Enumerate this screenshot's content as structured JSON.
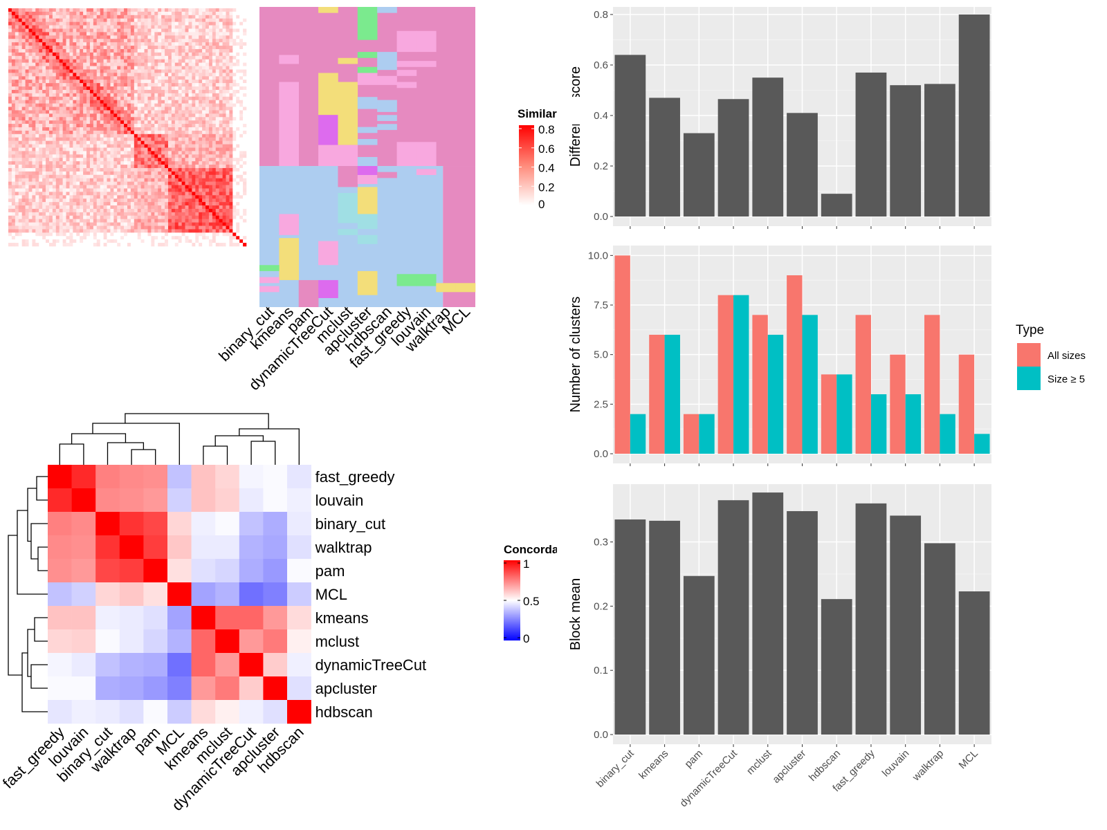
{
  "methods": [
    "binary_cut",
    "kmeans",
    "pam",
    "dynamicTreeCut",
    "mclust",
    "apcluster",
    "hdbscan",
    "fast_greedy",
    "louvain",
    "walktrap",
    "MCL"
  ],
  "similarity_legend": {
    "title": "Similarity",
    "ticks": [
      "0.8",
      "0.6",
      "0.4",
      "0.2",
      "0"
    ]
  },
  "concordance": {
    "legend_title": "Concordance",
    "legend_ticks": [
      "1",
      "0.5",
      "0"
    ],
    "order": [
      "fast_greedy",
      "louvain",
      "binary_cut",
      "walktrap",
      "pam",
      "MCL",
      "kmeans",
      "mclust",
      "dynamicTreeCut",
      "apcluster",
      "hdbscan"
    ],
    "matrix": [
      [
        1.0,
        0.92,
        0.75,
        0.73,
        0.72,
        0.38,
        0.62,
        0.58,
        0.48,
        0.49,
        0.45
      ],
      [
        0.92,
        1.0,
        0.73,
        0.72,
        0.7,
        0.41,
        0.62,
        0.59,
        0.46,
        0.49,
        0.47
      ],
      [
        0.75,
        0.73,
        1.0,
        0.9,
        0.86,
        0.58,
        0.47,
        0.49,
        0.38,
        0.34,
        0.46
      ],
      [
        0.73,
        0.72,
        0.9,
        1.0,
        0.88,
        0.61,
        0.46,
        0.46,
        0.35,
        0.33,
        0.44
      ],
      [
        0.72,
        0.7,
        0.86,
        0.88,
        1.0,
        0.56,
        0.44,
        0.42,
        0.34,
        0.3,
        0.49
      ],
      [
        0.38,
        0.41,
        0.58,
        0.61,
        0.56,
        1.0,
        0.32,
        0.35,
        0.22,
        0.25,
        0.4
      ],
      [
        0.62,
        0.62,
        0.47,
        0.46,
        0.44,
        0.32,
        1.0,
        0.8,
        0.8,
        0.7,
        0.57
      ],
      [
        0.58,
        0.59,
        0.49,
        0.46,
        0.42,
        0.35,
        0.8,
        1.0,
        0.7,
        0.76,
        0.53
      ],
      [
        0.48,
        0.46,
        0.38,
        0.35,
        0.34,
        0.22,
        0.8,
        0.7,
        1.0,
        0.6,
        0.47
      ],
      [
        0.49,
        0.49,
        0.34,
        0.33,
        0.3,
        0.25,
        0.7,
        0.76,
        0.6,
        1.0,
        0.44
      ],
      [
        0.45,
        0.47,
        0.46,
        0.44,
        0.49,
        0.4,
        0.57,
        0.53,
        0.47,
        0.44,
        1.0
      ]
    ]
  },
  "chart_data": [
    {
      "type": "bar",
      "categories": [
        "binary_cut",
        "kmeans",
        "pam",
        "dynamicTreeCut",
        "mclust",
        "apcluster",
        "hdbscan",
        "fast_greedy",
        "louvain",
        "walktrap",
        "MCL"
      ],
      "values": [
        0.64,
        0.47,
        0.33,
        0.465,
        0.55,
        0.41,
        0.09,
        0.57,
        0.52,
        0.525,
        0.8
      ],
      "xlabel": "",
      "ylabel": "Difference score",
      "ylim": [
        0,
        0.83
      ],
      "yticks": [
        "0.0",
        "0.2",
        "0.4",
        "0.6",
        "0.8"
      ],
      "grid": true,
      "bar_color": "#595959"
    },
    {
      "type": "bar",
      "categories": [
        "binary_cut",
        "kmeans",
        "pam",
        "dynamicTreeCut",
        "mclust",
        "apcluster",
        "hdbscan",
        "fast_greedy",
        "louvain",
        "walktrap",
        "MCL"
      ],
      "series": [
        {
          "name": "All sizes",
          "values": [
            10,
            6,
            2,
            8,
            7,
            9,
            4,
            7,
            5,
            7,
            5
          ],
          "color": "#F8766D"
        },
        {
          "name": "Size ≥ 5",
          "values": [
            2,
            6,
            2,
            8,
            6,
            7,
            4,
            3,
            3,
            2,
            1
          ],
          "color": "#00BFC4"
        }
      ],
      "xlabel": "",
      "ylabel": "Number of clusters",
      "ylim": [
        0,
        10.5
      ],
      "yticks": [
        "0.0",
        "2.5",
        "5.0",
        "7.5",
        "10.0"
      ],
      "legend": {
        "title": "Type",
        "placement": "right"
      },
      "grid": true
    },
    {
      "type": "bar",
      "categories": [
        "binary_cut",
        "kmeans",
        "pam",
        "dynamicTreeCut",
        "mclust",
        "apcluster",
        "hdbscan",
        "fast_greedy",
        "louvain",
        "walktrap",
        "MCL"
      ],
      "values": [
        0.335,
        0.333,
        0.247,
        0.365,
        0.377,
        0.348,
        0.211,
        0.36,
        0.341,
        0.298,
        0.223
      ],
      "xlabel": "",
      "ylabel": "Block mean",
      "ylim": [
        0,
        0.39
      ],
      "yticks": [
        "0.0",
        "0.1",
        "0.2",
        "0.3"
      ],
      "grid": true,
      "bar_color": "#595959"
    }
  ],
  "colors": {
    "panel_bg": "#EBEBEB",
    "heat_high": "#FF0000",
    "heat_low": "#FFFFFF",
    "conc_low": "#0000FF",
    "pink": "#E68AC0",
    "lightpink": "#F8A8DF",
    "blue": "#ADCDF0",
    "yellow": "#F3DE7A",
    "green": "#7BEA8E",
    "violet": "#DD6BEE",
    "teal": "#A0DFE4"
  }
}
